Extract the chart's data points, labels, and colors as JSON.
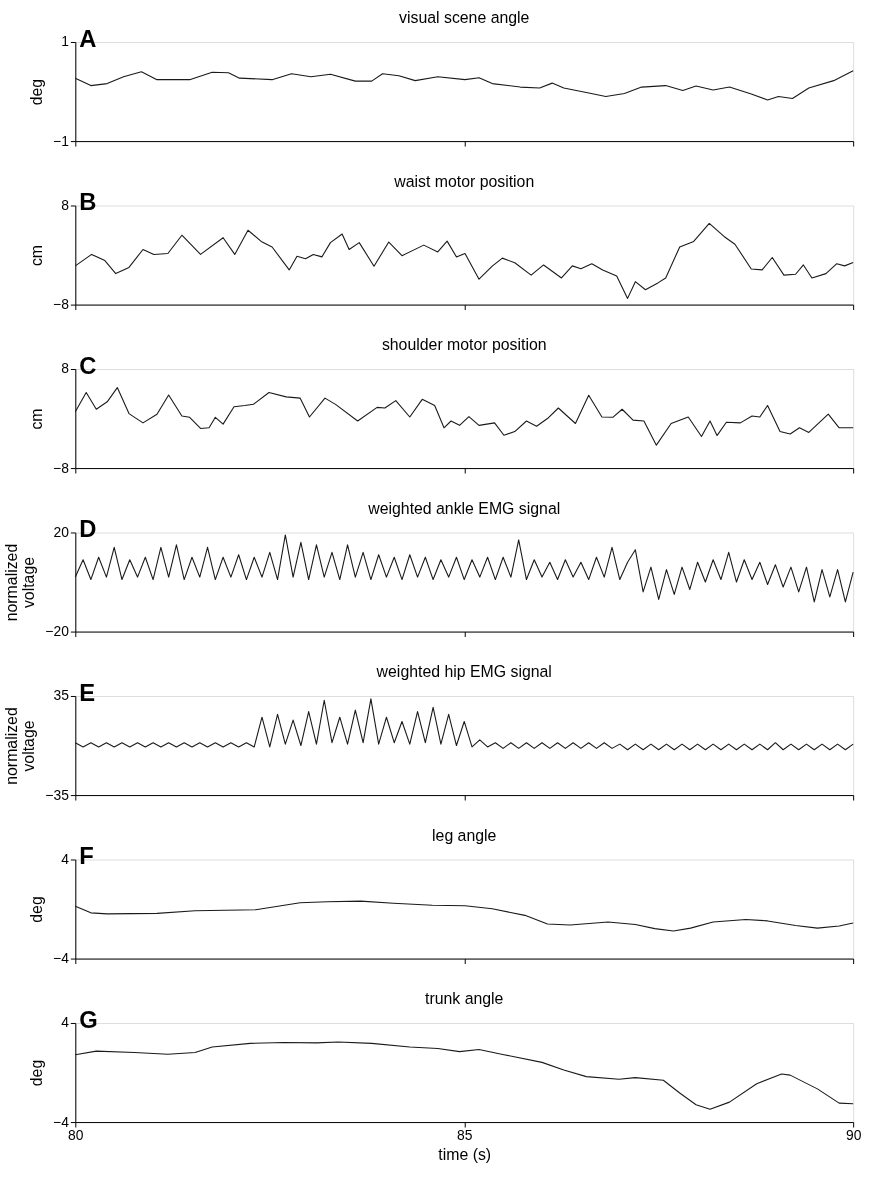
{
  "chart_data": [
    {
      "type": "line",
      "title": "visual scene angle",
      "ylabel": "deg",
      "annotations": [
        "A"
      ],
      "xlim": [
        80,
        90
      ],
      "xticks": [
        80,
        85,
        90
      ],
      "ylim": [
        -1,
        1
      ],
      "yticks": [
        -1,
        1
      ],
      "tick_labels": "y",
      "x": [
        80.0,
        80.2,
        80.41,
        80.62,
        80.85,
        81.05,
        81.47,
        81.76,
        81.97,
        82.11,
        82.53,
        82.78,
        83.03,
        83.28,
        83.6,
        83.81,
        83.95,
        84.16,
        84.37,
        84.66,
        85.01,
        85.19,
        85.36,
        85.72,
        85.97,
        86.13,
        86.28,
        86.57,
        86.82,
        87.06,
        87.28,
        87.59,
        87.81,
        87.98,
        88.2,
        88.41,
        88.69,
        88.9,
        89.04,
        89.22,
        89.43,
        89.75,
        90.0
      ],
      "series": [
        {
          "color": "#1a1a1a",
          "values": [
            0.27,
            0.12,
            0.16,
            0.3,
            0.4,
            0.24,
            0.24,
            0.39,
            0.38,
            0.27,
            0.24,
            0.36,
            0.3,
            0.35,
            0.21,
            0.21,
            0.36,
            0.32,
            0.22,
            0.3,
            0.24,
            0.28,
            0.16,
            0.09,
            0.07,
            0.17,
            0.07,
            -0.02,
            -0.1,
            -0.04,
            0.09,
            0.12,
            0.02,
            0.11,
            0.03,
            0.09,
            -0.05,
            -0.17,
            -0.1,
            -0.14,
            0.07,
            0.22,
            0.42
          ]
        }
      ]
    },
    {
      "type": "line",
      "title": "waist motor position",
      "ylabel": "cm",
      "annotations": [
        "B"
      ],
      "xlim": [
        80,
        90
      ],
      "xticks": [
        80,
        85,
        90
      ],
      "ylim": [
        -8,
        8
      ],
      "yticks": [
        -8,
        8
      ],
      "tick_labels": "y",
      "x": [
        80.0,
        80.21,
        80.38,
        80.52,
        80.69,
        80.87,
        81.01,
        81.19,
        81.37,
        81.61,
        81.9,
        82.05,
        82.22,
        82.39,
        82.53,
        82.75,
        82.85,
        82.96,
        83.06,
        83.17,
        83.28,
        83.43,
        83.52,
        83.65,
        83.84,
        84.03,
        84.2,
        84.48,
        84.66,
        84.78,
        84.9,
        85.01,
        85.19,
        85.36,
        85.49,
        85.65,
        85.86,
        86.02,
        86.25,
        86.39,
        86.5,
        86.64,
        86.78,
        86.96,
        87.1,
        87.2,
        87.33,
        87.49,
        87.59,
        87.77,
        87.95,
        88.15,
        88.34,
        88.48,
        88.69,
        88.83,
        88.96,
        89.11,
        89.26,
        89.36,
        89.47,
        89.65,
        89.79,
        89.89,
        90.0
      ],
      "series": [
        {
          "color": "#1a1a1a",
          "values": [
            -1.75,
            0.1,
            -0.9,
            -3.0,
            -2.0,
            0.9,
            0.1,
            0.25,
            3.2,
            0.1,
            2.8,
            0.1,
            4.0,
            2.2,
            1.3,
            -2.4,
            -0.2,
            -0.6,
            0.1,
            -0.3,
            2.0,
            3.4,
            0.9,
            2.0,
            -1.8,
            2.1,
            -0.1,
            1.6,
            0.5,
            2.25,
            -0.3,
            0.25,
            -3.9,
            -1.8,
            -0.5,
            -1.25,
            -3.25,
            -1.6,
            -3.7,
            -1.75,
            -2.2,
            -1.4,
            -2.4,
            -3.4,
            -7.0,
            -4.3,
            -5.6,
            -4.5,
            -3.7,
            1.3,
            2.2,
            5.1,
            3.0,
            1.75,
            -2.25,
            -2.4,
            -0.4,
            -3.25,
            -3.1,
            -1.6,
            -3.7,
            -3.0,
            -1.4,
            -1.75,
            -1.2
          ]
        }
      ]
    },
    {
      "type": "line",
      "title": "shoulder motor position",
      "ylabel": "cm",
      "annotations": [
        "C"
      ],
      "xlim": [
        80,
        90
      ],
      "xticks": [
        80,
        85,
        90
      ],
      "ylim": [
        -8,
        8
      ],
      "yticks": [
        -8,
        8
      ],
      "tick_labels": "y",
      "x": [
        80.0,
        80.14,
        80.27,
        80.41,
        80.54,
        80.69,
        80.87,
        81.05,
        81.2,
        81.37,
        81.47,
        81.61,
        81.72,
        81.8,
        81.9,
        82.04,
        82.18,
        82.29,
        82.49,
        82.71,
        82.89,
        83.01,
        83.21,
        83.35,
        83.63,
        83.88,
        83.98,
        84.12,
        84.3,
        84.46,
        84.62,
        84.74,
        84.83,
        84.94,
        85.06,
        85.19,
        85.39,
        85.51,
        85.65,
        85.8,
        85.93,
        86.07,
        86.21,
        86.43,
        86.6,
        86.77,
        86.91,
        87.03,
        87.17,
        87.31,
        87.47,
        87.66,
        87.88,
        88.05,
        88.16,
        88.25,
        88.37,
        88.55,
        88.7,
        88.8,
        88.9,
        89.06,
        89.19,
        89.31,
        89.43,
        89.68,
        89.82,
        90.0
      ],
      "series": [
        {
          "color": "#1a1a1a",
          "values": [
            1.1,
            4.2,
            1.5,
            2.7,
            5.0,
            0.8,
            -0.7,
            0.7,
            3.8,
            0.4,
            0.2,
            -1.6,
            -1.5,
            0.2,
            -0.9,
            1.9,
            2.1,
            2.3,
            4.2,
            3.5,
            3.3,
            0.25,
            3.3,
            2.25,
            -0.4,
            1.8,
            1.7,
            2.9,
            0.25,
            3.1,
            2.1,
            -1.5,
            -0.4,
            -1.1,
            0.3,
            -1.1,
            -0.7,
            -2.7,
            -2.1,
            -0.4,
            -1.25,
            0.0,
            1.7,
            -0.8,
            3.75,
            0.25,
            0.2,
            1.5,
            -0.25,
            -0.4,
            -4.3,
            -0.8,
            0.25,
            -2.9,
            -0.4,
            -2.75,
            -0.6,
            -0.7,
            0.4,
            0.25,
            2.1,
            -2.1,
            -2.5,
            -1.5,
            -2.25,
            0.7,
            -1.5,
            -1.5
          ]
        }
      ]
    },
    {
      "type": "line",
      "title": "weighted ankle EMG signal",
      "ylabel": "normalized\nvoltage",
      "annotations": [
        "D"
      ],
      "xlim": [
        80,
        90
      ],
      "xticks": [
        80,
        85,
        90
      ],
      "ylim": [
        -20,
        20
      ],
      "yticks": [
        -20,
        20
      ],
      "tick_labels": "y",
      "x": [
        80.0,
        80.1,
        80.2,
        80.3,
        80.4,
        80.5,
        80.6,
        80.7,
        80.8,
        80.9,
        81.0,
        81.1,
        81.2,
        81.3,
        81.4,
        81.5,
        81.6,
        81.7,
        81.8,
        81.9,
        82.0,
        82.1,
        82.2,
        82.3,
        82.4,
        82.5,
        82.6,
        82.7,
        82.8,
        82.9,
        83.0,
        83.1,
        83.2,
        83.3,
        83.4,
        83.5,
        83.6,
        83.7,
        83.8,
        83.9,
        84.0,
        84.1,
        84.2,
        84.3,
        84.4,
        84.5,
        84.6,
        84.7,
        84.8,
        84.9,
        85.0,
        85.1,
        85.2,
        85.3,
        85.4,
        85.5,
        85.6,
        85.7,
        85.8,
        85.9,
        86.0,
        86.1,
        86.2,
        86.3,
        86.4,
        86.5,
        86.6,
        86.7,
        86.8,
        86.9,
        87.0,
        87.1,
        87.2,
        87.3,
        87.4,
        87.5,
        87.6,
        87.7,
        87.8,
        87.9,
        88.0,
        88.1,
        88.2,
        88.3,
        88.4,
        88.5,
        88.6,
        88.7,
        88.8,
        88.9,
        89.0,
        89.1,
        89.2,
        89.3,
        89.4,
        89.5,
        89.6,
        89.7,
        89.8,
        89.9,
        90.0
      ],
      "series": [
        {
          "color": "#1a1a1a",
          "values": [
            2,
            9,
            1,
            10,
            2,
            14,
            1,
            9,
            2,
            10,
            1,
            14,
            2,
            15,
            1,
            10,
            2,
            14,
            1,
            10,
            2,
            11,
            1,
            10,
            2,
            12,
            1,
            19,
            2,
            16,
            1,
            15,
            2,
            12,
            1,
            15,
            2,
            12,
            1,
            11,
            2,
            10,
            1,
            11,
            2,
            10,
            1,
            9,
            2,
            10,
            1,
            9,
            2,
            10,
            1,
            10,
            2,
            17,
            1,
            9,
            2,
            8,
            1,
            9,
            2,
            8,
            1,
            10,
            2,
            14,
            1,
            8,
            13,
            -4,
            6,
            -7,
            5,
            -5,
            6,
            -3,
            8,
            0,
            9,
            1,
            12,
            0,
            9,
            1,
            8,
            -1,
            7,
            -2,
            6,
            -4,
            6,
            -8,
            5,
            -6,
            5,
            -8,
            4
          ]
        }
      ]
    },
    {
      "type": "line",
      "title": "weighted hip EMG signal",
      "ylabel": "normalized\nvoltage",
      "annotations": [
        "E"
      ],
      "xlim": [
        80,
        90
      ],
      "xticks": [
        80,
        85,
        90
      ],
      "ylim": [
        -35,
        35
      ],
      "yticks": [
        -35,
        35
      ],
      "tick_labels": "y",
      "x": [
        80.0,
        80.1,
        80.2,
        80.3,
        80.4,
        80.5,
        80.6,
        80.7,
        80.8,
        80.9,
        81.0,
        81.1,
        81.2,
        81.3,
        81.4,
        81.5,
        81.6,
        81.7,
        81.8,
        81.9,
        82.0,
        82.1,
        82.2,
        82.3,
        82.4,
        82.5,
        82.6,
        82.7,
        82.8,
        82.9,
        83.0,
        83.1,
        83.2,
        83.3,
        83.4,
        83.5,
        83.6,
        83.7,
        83.8,
        83.9,
        84.0,
        84.1,
        84.2,
        84.3,
        84.4,
        84.5,
        84.6,
        84.7,
        84.8,
        84.9,
        85.0,
        85.1,
        85.2,
        85.3,
        85.4,
        85.5,
        85.6,
        85.7,
        85.8,
        85.9,
        86.0,
        86.1,
        86.2,
        86.3,
        86.4,
        86.5,
        86.6,
        86.7,
        86.8,
        86.9,
        87.0,
        87.1,
        87.2,
        87.3,
        87.4,
        87.5,
        87.6,
        87.7,
        87.8,
        87.9,
        88.0,
        88.1,
        88.2,
        88.3,
        88.4,
        88.5,
        88.6,
        88.7,
        88.8,
        88.9,
        89.0,
        89.1,
        89.2,
        89.3,
        89.4,
        89.5,
        89.6,
        89.7,
        89.8,
        89.9,
        90.0
      ],
      "series": [
        {
          "color": "#1a1a1a",
          "values": [
            2,
            -1,
            2,
            -1,
            2,
            -1,
            2,
            -1,
            2,
            -1,
            2,
            -1,
            2,
            -1,
            2,
            -1,
            2,
            -1,
            2,
            -1,
            2,
            -1,
            2,
            -1,
            20,
            -1,
            22,
            1,
            18,
            0,
            24,
            1,
            32,
            2,
            20,
            1,
            25,
            2,
            33,
            1,
            20,
            2,
            17,
            1,
            24,
            2,
            27,
            1,
            22,
            0,
            17,
            -1,
            4,
            -1,
            2,
            -2,
            2,
            -2,
            2,
            -2,
            2,
            -2,
            2,
            -2,
            2,
            -2,
            2,
            -2,
            2,
            -2,
            1,
            -3,
            1,
            -3,
            1,
            -3,
            1,
            -3,
            1,
            -3,
            1,
            -3,
            1,
            -3,
            1,
            -3,
            1,
            -3,
            1,
            -3,
            2,
            -3,
            1,
            -3,
            1,
            -3,
            1,
            -3,
            1,
            -3,
            1
          ]
        }
      ]
    },
    {
      "type": "line",
      "title": "leg angle",
      "ylabel": "deg",
      "annotations": [
        "F"
      ],
      "xlim": [
        80,
        90
      ],
      "xticks": [
        80,
        85,
        90
      ],
      "ylim": [
        -4,
        4
      ],
      "yticks": [
        -4,
        4
      ],
      "tick_labels": "y",
      "x": [
        80.0,
        80.2,
        80.41,
        81.05,
        81.54,
        82.32,
        82.89,
        83.24,
        83.67,
        84.09,
        84.59,
        85.01,
        85.36,
        85.78,
        86.07,
        86.36,
        86.85,
        87.2,
        87.45,
        87.69,
        87.91,
        88.2,
        88.62,
        88.9,
        89.26,
        89.54,
        89.82,
        90.0
      ],
      "series": [
        {
          "color": "#1a1a1a",
          "values": [
            0.23,
            -0.31,
            -0.39,
            -0.35,
            -0.14,
            -0.06,
            0.51,
            0.59,
            0.64,
            0.47,
            0.31,
            0.27,
            0.02,
            -0.51,
            -1.21,
            -1.29,
            -1.05,
            -1.25,
            -1.58,
            -1.78,
            -1.54,
            -1.05,
            -0.84,
            -0.96,
            -1.33,
            -1.54,
            -1.37,
            -1.13
          ]
        }
      ]
    },
    {
      "type": "line",
      "title": "trunk angle",
      "xlabel": "time (s)",
      "ylabel": "deg",
      "annotations": [
        "G"
      ],
      "xlim": [
        80,
        90
      ],
      "xticks": [
        80,
        85,
        90
      ],
      "ylim": [
        -4,
        4
      ],
      "yticks": [
        -4,
        4
      ],
      "x": [
        80.0,
        80.27,
        80.76,
        81.19,
        81.54,
        81.76,
        82.25,
        82.68,
        83.1,
        83.38,
        83.81,
        84.3,
        84.66,
        84.94,
        85.19,
        85.51,
        86.0,
        86.28,
        86.57,
        86.99,
        87.2,
        87.56,
        87.77,
        87.98,
        88.16,
        88.41,
        88.76,
        89.08,
        89.19,
        89.54,
        89.82,
        90.0
      ],
      "series": [
        {
          "color": "#1a1a1a",
          "values": [
            1.44,
            1.73,
            1.61,
            1.48,
            1.61,
            2.06,
            2.35,
            2.43,
            2.39,
            2.47,
            2.35,
            2.06,
            1.94,
            1.69,
            1.86,
            1.44,
            0.82,
            0.21,
            -0.33,
            -0.54,
            -0.41,
            -0.62,
            -1.65,
            -2.6,
            -2.97,
            -2.39,
            -0.91,
            -0.12,
            -0.21,
            -1.32,
            -2.47,
            -2.52
          ]
        }
      ]
    }
  ]
}
